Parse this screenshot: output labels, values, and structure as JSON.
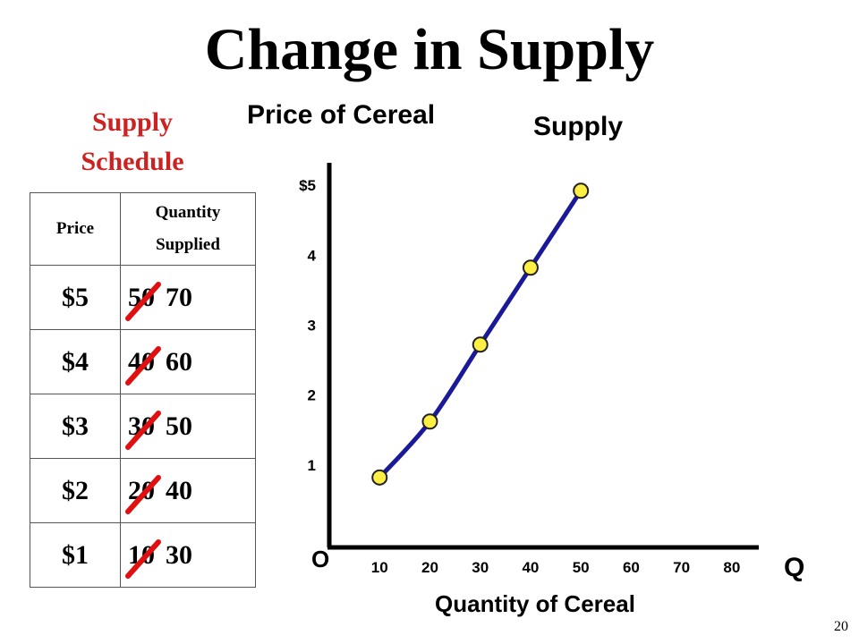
{
  "title": "Change in Supply",
  "schedule": {
    "title_line1": "Supply",
    "title_line2": "Schedule",
    "title_color": "#cc2222",
    "header_price": "Price",
    "header_qty_line1": "Quantity",
    "header_qty_line2": "Supplied",
    "rows": [
      {
        "price": "$5",
        "old_qty": "50",
        "new_qty": "70"
      },
      {
        "price": "$4",
        "old_qty": "40",
        "new_qty": "60"
      },
      {
        "price": "$3",
        "old_qty": "30",
        "new_qty": "50"
      },
      {
        "price": "$2",
        "old_qty": "20",
        "new_qty": "40"
      },
      {
        "price": "$1",
        "old_qty": "10",
        "new_qty": "30"
      }
    ],
    "strike_color": "#e01010"
  },
  "chart_data": {
    "type": "line",
    "ylabel": "Price of Cereal",
    "xlabel": "Quantity of Cereal",
    "series_label": "Supply",
    "origin_label": "O",
    "q_label": "Q",
    "x_ticks": [
      "10",
      "20",
      "30",
      "40",
      "50",
      "60",
      "70",
      "80"
    ],
    "y_ticks": [
      "1",
      "2",
      "3",
      "4",
      "$5"
    ],
    "xlim": [
      0,
      85
    ],
    "ylim": [
      0,
      5.5
    ],
    "series": [
      {
        "name": "Supply",
        "points": [
          {
            "x": 10,
            "y": 1
          },
          {
            "x": 20,
            "y": 1.8
          },
          {
            "x": 30,
            "y": 2.9
          },
          {
            "x": 40,
            "y": 4
          },
          {
            "x": 50,
            "y": 5.1
          }
        ]
      }
    ],
    "line_color": "#1a1a99",
    "marker_color": "#ffee44",
    "grid": false
  },
  "page_number": "20"
}
